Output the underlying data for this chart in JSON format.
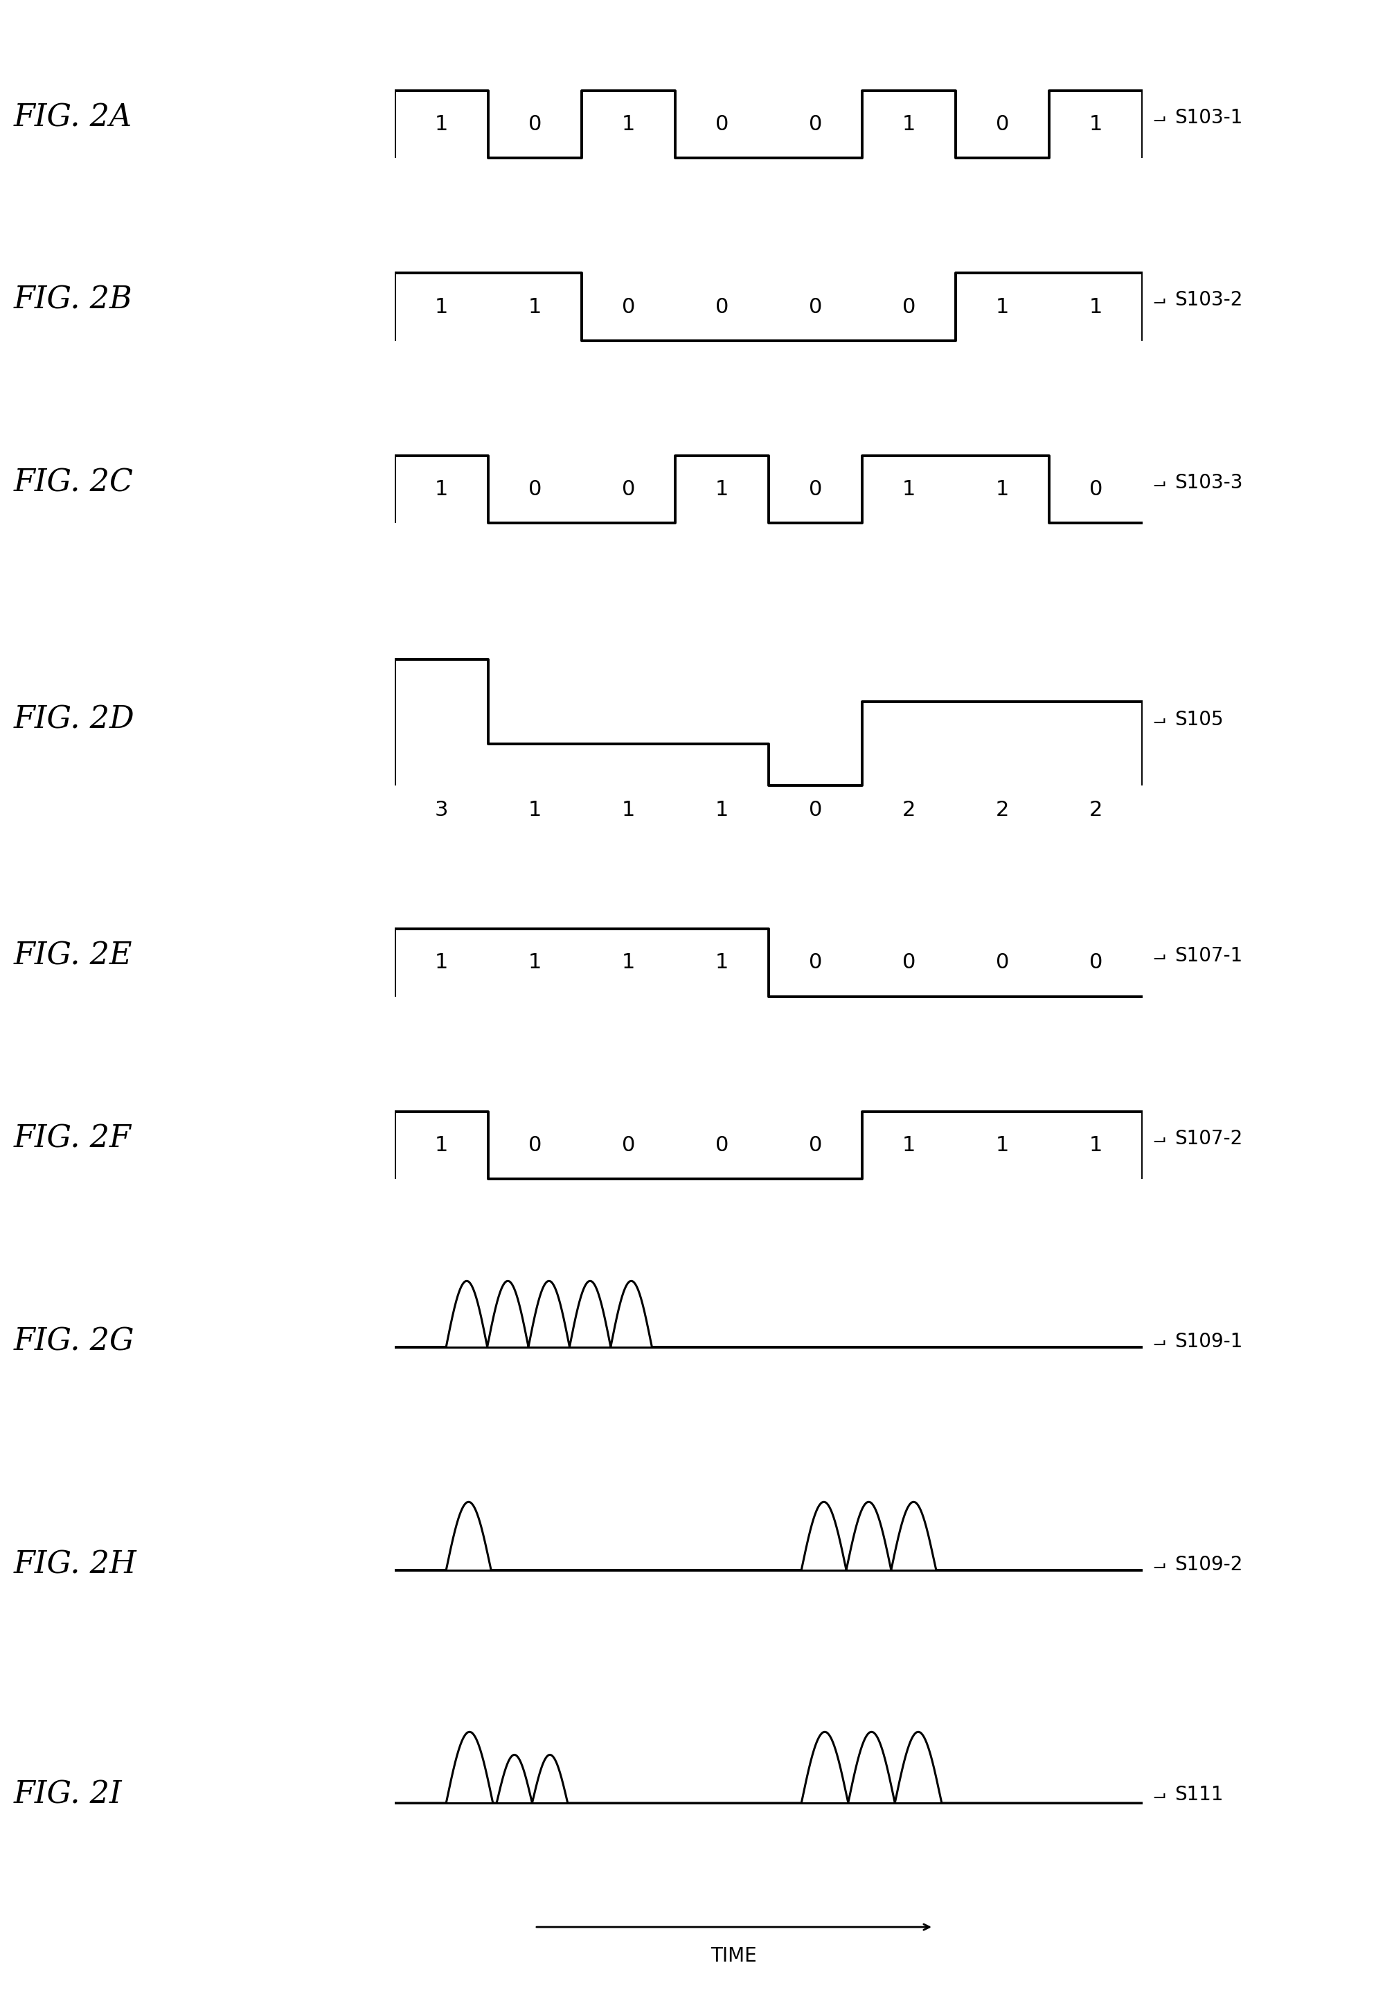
{
  "fig_labels": [
    "FIG. 2A",
    "FIG. 2B",
    "FIG. 2C",
    "FIG. 2D",
    "FIG. 2E",
    "FIG. 2F",
    "FIG. 2G",
    "FIG. 2H",
    "FIG. 2I"
  ],
  "signal_labels": [
    "S103-1",
    "S103-2",
    "S103-3",
    "S105",
    "S107-1",
    "S107-2",
    "S109-1",
    "S109-2",
    "S111"
  ],
  "bits_2A": [
    1,
    0,
    1,
    0,
    0,
    1,
    0,
    1
  ],
  "bits_2B": [
    1,
    1,
    0,
    0,
    0,
    0,
    1,
    1
  ],
  "bits_2C": [
    1,
    0,
    0,
    1,
    0,
    1,
    1,
    0
  ],
  "vals_2D": [
    3,
    1,
    1,
    1,
    0,
    2,
    2,
    2
  ],
  "bits_2E": [
    1,
    1,
    1,
    1,
    0,
    0,
    0,
    0
  ],
  "bits_2F": [
    1,
    0,
    0,
    0,
    0,
    1,
    1,
    1
  ],
  "bg_color": "#ffffff",
  "line_color": "#000000",
  "label_fontsize": 32,
  "bit_fontsize": 22,
  "signal_fontsize": 20,
  "time_fontsize": 20
}
